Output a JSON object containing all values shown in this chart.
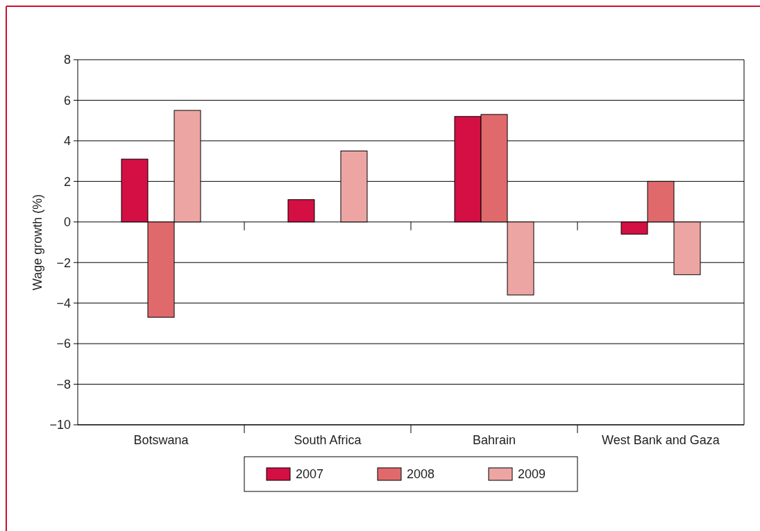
{
  "chart_data": {
    "type": "bar",
    "ylabel": "Wage growth (%)",
    "categories": [
      "Botswana",
      "South Africa",
      "Bahrain",
      "West Bank and Gaza"
    ],
    "series": [
      {
        "name": "2007",
        "color": "#d40f43",
        "values": [
          3.1,
          1.1,
          5.2,
          -0.6
        ]
      },
      {
        "name": "2008",
        "color": "#e0696c",
        "values": [
          -4.7,
          null,
          5.3,
          2.0
        ]
      },
      {
        "name": "2009",
        "color": "#eda5a3",
        "values": [
          5.5,
          3.5,
          -3.6,
          -2.6
        ]
      }
    ],
    "ylim": [
      -10,
      8
    ],
    "yticks": [
      {
        "value": -10,
        "label": "−10"
      },
      {
        "value": -8,
        "label": "−8"
      },
      {
        "value": -6,
        "label": "−6"
      },
      {
        "value": -4,
        "label": "−4"
      },
      {
        "value": -2,
        "label": "−2"
      },
      0,
      2,
      4,
      6,
      8
    ],
    "grid": "y",
    "legend": "bottom"
  }
}
